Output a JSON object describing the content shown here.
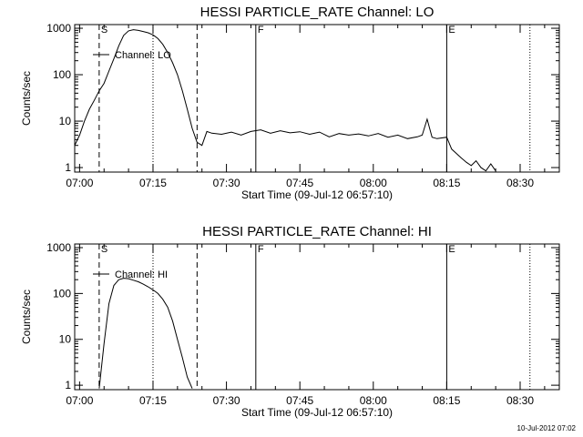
{
  "footer": {
    "timestamp": "10-Jul-2012 07:02"
  },
  "chart_data": [
    {
      "type": "line",
      "title": "HESSI PARTICLE_RATE Channel: LO",
      "xlabel": "Start Time (09-Jul-12 06:57:10)",
      "ylabel": "Counts/sec",
      "yscale": "log",
      "ylim": [
        0.8,
        1200
      ],
      "xlim": [
        "06:59",
        "08:38"
      ],
      "xticks": [
        "07:00",
        "07:15",
        "07:30",
        "07:45",
        "08:00",
        "08:15",
        "08:30"
      ],
      "yticks": [
        "1",
        "10",
        "100",
        "1000"
      ],
      "legend": {
        "placement": "top-left",
        "label": "Channel: LO"
      },
      "markers": [
        {
          "label": "S",
          "time": "07:04",
          "style": "dashed"
        },
        {
          "label": "",
          "time": "07:15",
          "style": "dotted"
        },
        {
          "label": "",
          "time": "07:24",
          "style": "dashed"
        },
        {
          "label": "F",
          "time": "07:36",
          "style": "solid"
        },
        {
          "label": "E",
          "time": "08:15",
          "style": "solid"
        },
        {
          "label": "",
          "time": "08:32",
          "style": "dotted"
        }
      ],
      "series": [
        {
          "x": [
            "06:59",
            "07:00",
            "07:01",
            "07:02",
            "07:03",
            "07:04",
            "07:05",
            "07:06",
            "07:07",
            "07:08",
            "07:09",
            "07:10",
            "07:11",
            "07:12",
            "07:13",
            "07:14",
            "07:15",
            "07:16",
            "07:17",
            "07:18",
            "07:19",
            "07:20",
            "07:21",
            "07:22",
            "07:23",
            "07:24",
            "07:25",
            "07:26",
            "07:27",
            "07:29",
            "07:31",
            "07:33",
            "07:35",
            "07:37",
            "07:39",
            "07:41",
            "07:43",
            "07:45",
            "07:47",
            "07:49",
            "07:51",
            "07:53",
            "07:55",
            "07:57",
            "07:59",
            "08:01",
            "08:03",
            "08:05",
            "08:07",
            "08:09",
            "08:10",
            "08:11",
            "08:12",
            "08:13",
            "08:15",
            "08:16",
            "08:17",
            "08:18",
            "08:19",
            "08:20",
            "08:21",
            "08:22",
            "08:23",
            "08:24",
            "08:25"
          ],
          "values": [
            3,
            5,
            10,
            18,
            28,
            45,
            65,
            120,
            220,
            420,
            700,
            880,
            930,
            900,
            850,
            800,
            720,
            600,
            450,
            300,
            180,
            100,
            45,
            18,
            7,
            3.5,
            3,
            6,
            5.5,
            5.2,
            5.8,
            5,
            6,
            6.5,
            5.5,
            6.2,
            5.6,
            5.9,
            5.2,
            5.8,
            4.6,
            5.4,
            5,
            5.3,
            4.8,
            5.4,
            4.5,
            5,
            4.2,
            4.6,
            5,
            11,
            4.5,
            4.2,
            4.5,
            2.5,
            2,
            1.6,
            1.3,
            1.1,
            1.4,
            1,
            0.85,
            1.2,
            0.85
          ]
        }
      ]
    },
    {
      "type": "line",
      "title": "HESSI PARTICLE_RATE Channel: HI",
      "xlabel": "Start Time (09-Jul-12 06:57:10)",
      "ylabel": "Counts/sec",
      "yscale": "log",
      "ylim": [
        0.8,
        1200
      ],
      "xlim": [
        "06:59",
        "08:38"
      ],
      "xticks": [
        "07:00",
        "07:15",
        "07:30",
        "07:45",
        "08:00",
        "08:15",
        "08:30"
      ],
      "yticks": [
        "1",
        "10",
        "100",
        "1000"
      ],
      "legend": {
        "placement": "top-left",
        "label": "Channel: HI"
      },
      "markers": [
        {
          "label": "S",
          "time": "07:04",
          "style": "dashed"
        },
        {
          "label": "",
          "time": "07:15",
          "style": "dotted"
        },
        {
          "label": "",
          "time": "07:24",
          "style": "dashed"
        },
        {
          "label": "F",
          "time": "07:36",
          "style": "solid"
        },
        {
          "label": "E",
          "time": "08:15",
          "style": "solid"
        },
        {
          "label": "",
          "time": "08:32",
          "style": "dotted"
        }
      ],
      "series": [
        {
          "x": [
            "07:04",
            "07:05",
            "07:06",
            "07:07",
            "07:08",
            "07:09",
            "07:10",
            "07:11",
            "07:12",
            "07:13",
            "07:14",
            "07:15",
            "07:16",
            "07:17",
            "07:18",
            "07:19",
            "07:20",
            "07:21",
            "07:22",
            "07:23"
          ],
          "values": [
            0.85,
            8,
            60,
            150,
            200,
            215,
            210,
            195,
            180,
            160,
            140,
            120,
            100,
            75,
            50,
            25,
            10,
            4,
            1.5,
            0.85
          ]
        }
      ]
    }
  ]
}
